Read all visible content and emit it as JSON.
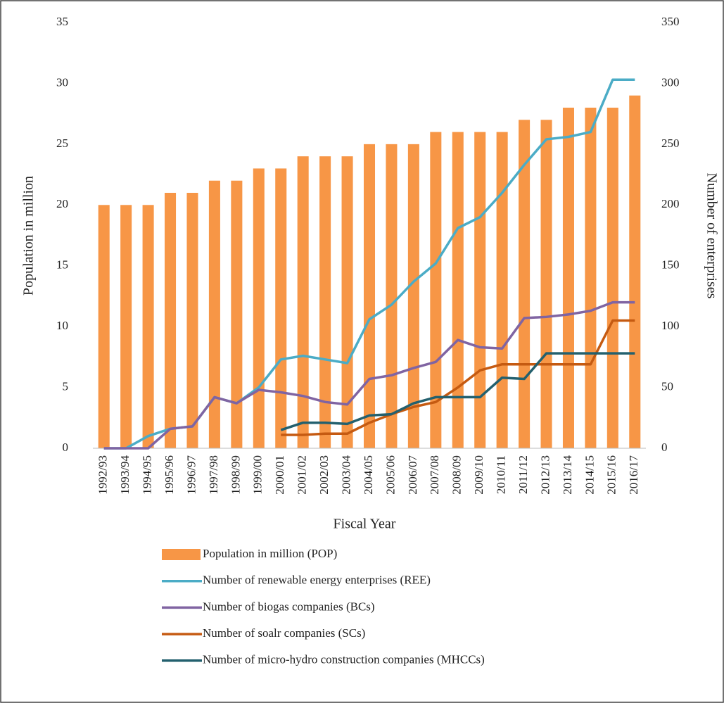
{
  "chart_data": {
    "type": "combo",
    "x_label": "Fiscal Year",
    "y_label": "Population in million",
    "y2_label": "Number of enterprises",
    "categories": [
      "1992/93",
      "1993/94",
      "1994/95",
      "1995/96",
      "1996/97",
      "1997/98",
      "1998/99",
      "1999/00",
      "2000/01",
      "2001/02",
      "2002/03",
      "2003/04",
      "2004/05",
      "2005/06",
      "2006/07",
      "2007/08",
      "2008/09",
      "2009/10",
      "2010/11",
      "2011/12",
      "2012/13",
      "2013/14",
      "2014/15",
      "2015/16",
      "2016/17"
    ],
    "ylim": [
      0,
      35
    ],
    "yticks": [
      0,
      5,
      10,
      15,
      20,
      25,
      30,
      35
    ],
    "y2lim": [
      0,
      350
    ],
    "y2ticks": [
      0,
      50,
      100,
      150,
      200,
      250,
      300,
      350
    ],
    "series": [
      {
        "name": "Population in million (POP)",
        "type": "bar",
        "color": "#f79646",
        "values": [
          20,
          20,
          20,
          21,
          21,
          22,
          22,
          23,
          23,
          24,
          24,
          24,
          25,
          25,
          25,
          26,
          26,
          26,
          26,
          27,
          27,
          28,
          28,
          28,
          29
        ]
      },
      {
        "name": "Number of renewable energy enterprises (REE)",
        "type": "line",
        "axis": "y2",
        "color": "#4bacc6",
        "values": [
          0,
          0,
          10,
          16,
          18,
          42,
          37,
          50,
          73,
          76,
          73,
          70,
          106,
          118,
          137,
          152,
          181,
          190,
          210,
          233,
          254,
          256,
          260,
          303,
          303
        ]
      },
      {
        "name": "Number of biogas companies (BCs)",
        "type": "line",
        "axis": "y2",
        "color": "#8064a2",
        "values": [
          0,
          0,
          0,
          16,
          18,
          42,
          37,
          48,
          46,
          43,
          38,
          36,
          57,
          60,
          66,
          71,
          89,
          83,
          82,
          107,
          108,
          110,
          113,
          120,
          120
        ]
      },
      {
        "name": "Number of soalr companies (SCs)",
        "type": "line",
        "axis": "y2",
        "color": "#c55a11",
        "values": [
          null,
          null,
          null,
          null,
          null,
          null,
          null,
          null,
          11,
          11,
          12,
          12,
          21,
          28,
          34,
          38,
          50,
          64,
          69,
          69,
          69,
          69,
          69,
          105,
          105
        ]
      },
      {
        "name": "Number of micro-hydro  construction companies (MHCCs)",
        "type": "line",
        "axis": "y2",
        "color": "#23606e",
        "values": [
          null,
          null,
          null,
          null,
          null,
          null,
          null,
          null,
          15,
          21,
          21,
          20,
          27,
          28,
          37,
          42,
          42,
          42,
          58,
          57,
          78,
          78,
          78,
          78,
          78
        ]
      }
    ]
  }
}
